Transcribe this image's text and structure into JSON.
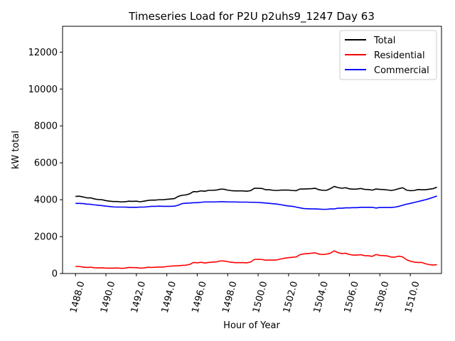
{
  "chart_data": {
    "type": "line",
    "title": "Timeseries Load for P2U p2uhs9_1247  Day 63",
    "xlabel": "Hour of Year",
    "ylabel": "kW total",
    "xlim": [
      1487.15,
      1512.05
    ],
    "ylim": [
      0,
      13400
    ],
    "xticks": [
      1488,
      1490,
      1492,
      1494,
      1496,
      1498,
      1500,
      1502,
      1504,
      1506,
      1508,
      1510
    ],
    "xtick_labels": [
      "1488.0",
      "1490.0",
      "1492.0",
      "1494.0",
      "1496.0",
      "1498.0",
      "1500.0",
      "1502.0",
      "1504.0",
      "1506.0",
      "1508.0",
      "1510.0"
    ],
    "yticks": [
      0,
      2000,
      4000,
      6000,
      8000,
      10000,
      12000
    ],
    "ytick_labels": [
      "0",
      "2000",
      "4000",
      "6000",
      "8000",
      "10000",
      "12000"
    ],
    "legend_position": "top-right",
    "x": [
      1488.0,
      1488.25,
      1488.5,
      1488.75,
      1489.0,
      1489.25,
      1489.5,
      1489.75,
      1490.0,
      1490.25,
      1490.5,
      1490.75,
      1491.0,
      1491.25,
      1491.5,
      1491.75,
      1492.0,
      1492.25,
      1492.5,
      1492.75,
      1493.0,
      1493.25,
      1493.5,
      1493.75,
      1494.0,
      1494.25,
      1494.5,
      1494.75,
      1495.0,
      1495.25,
      1495.5,
      1495.75,
      1496.0,
      1496.25,
      1496.5,
      1496.75,
      1497.0,
      1497.25,
      1497.5,
      1497.75,
      1498.0,
      1498.25,
      1498.5,
      1498.75,
      1499.0,
      1499.25,
      1499.5,
      1499.75,
      1500.0,
      1500.25,
      1500.5,
      1500.75,
      1501.0,
      1501.25,
      1501.5,
      1501.75,
      1502.0,
      1502.25,
      1502.5,
      1502.75,
      1503.0,
      1503.25,
      1503.5,
      1503.75,
      1504.0,
      1504.25,
      1504.5,
      1504.75,
      1505.0,
      1505.25,
      1505.5,
      1505.75,
      1506.0,
      1506.25,
      1506.5,
      1506.75,
      1507.0,
      1507.25,
      1507.5,
      1507.75,
      1508.0,
      1508.25,
      1508.5,
      1508.75,
      1509.0,
      1509.25,
      1509.5,
      1509.75,
      1510.0,
      1510.25,
      1510.5,
      1510.75,
      1511.0,
      1511.25,
      1511.5,
      1511.75
    ],
    "series": [
      {
        "name": "Total",
        "color": "#000000",
        "values": [
          4180,
          4190,
          4150,
          4100,
          4100,
          4040,
          4010,
          4000,
          3950,
          3920,
          3900,
          3900,
          3880,
          3890,
          3920,
          3910,
          3920,
          3890,
          3920,
          3960,
          3980,
          3980,
          4000,
          4000,
          4020,
          4040,
          4060,
          4180,
          4240,
          4260,
          4320,
          4440,
          4430,
          4480,
          4460,
          4510,
          4510,
          4520,
          4570,
          4570,
          4520,
          4490,
          4480,
          4480,
          4480,
          4460,
          4490,
          4620,
          4620,
          4610,
          4540,
          4540,
          4510,
          4500,
          4520,
          4520,
          4520,
          4500,
          4490,
          4580,
          4580,
          4590,
          4600,
          4620,
          4540,
          4510,
          4510,
          4600,
          4720,
          4660,
          4620,
          4650,
          4590,
          4570,
          4580,
          4610,
          4560,
          4550,
          4520,
          4580,
          4560,
          4550,
          4530,
          4500,
          4540,
          4600,
          4650,
          4520,
          4490,
          4500,
          4550,
          4540,
          4540,
          4570,
          4600,
          4680
        ]
      },
      {
        "name": "Residential",
        "color": "#ff0000",
        "values": [
          380,
          380,
          350,
          330,
          340,
          310,
          300,
          310,
          290,
          290,
          290,
          300,
          280,
          290,
          330,
          320,
          320,
          290,
          300,
          340,
          330,
          340,
          350,
          350,
          380,
          400,
          410,
          420,
          440,
          450,
          490,
          600,
          580,
          610,
          570,
          600,
          620,
          630,
          680,
          680,
          640,
          610,
          590,
          590,
          590,
          580,
          620,
          760,
          770,
          760,
          720,
          730,
          730,
          740,
          790,
          830,
          860,
          880,
          900,
          1020,
          1060,
          1080,
          1100,
          1120,
          1050,
          1030,
          1050,
          1100,
          1230,
          1130,
          1080,
          1100,
          1030,
          1000,
          1000,
          1020,
          970,
          960,
          930,
          1030,
          980,
          970,
          950,
          890,
          890,
          940,
          900,
          750,
          670,
          620,
          600,
          600,
          530,
          480,
          460,
          480
        ]
      },
      {
        "name": "Commercial",
        "color": "#0000ff",
        "values": [
          3800,
          3800,
          3790,
          3760,
          3750,
          3720,
          3700,
          3680,
          3650,
          3630,
          3610,
          3600,
          3600,
          3600,
          3590,
          3590,
          3590,
          3600,
          3600,
          3620,
          3640,
          3640,
          3650,
          3640,
          3640,
          3640,
          3650,
          3700,
          3790,
          3810,
          3820,
          3840,
          3840,
          3860,
          3880,
          3880,
          3880,
          3880,
          3890,
          3890,
          3880,
          3880,
          3880,
          3870,
          3870,
          3870,
          3860,
          3860,
          3850,
          3840,
          3820,
          3800,
          3780,
          3760,
          3730,
          3690,
          3660,
          3640,
          3600,
          3560,
          3520,
          3510,
          3500,
          3500,
          3490,
          3480,
          3480,
          3500,
          3500,
          3540,
          3540,
          3560,
          3560,
          3570,
          3570,
          3590,
          3590,
          3590,
          3590,
          3550,
          3580,
          3580,
          3580,
          3580,
          3600,
          3640,
          3700,
          3760,
          3800,
          3850,
          3900,
          3950,
          4000,
          4060,
          4130,
          4200
        ]
      }
    ]
  }
}
